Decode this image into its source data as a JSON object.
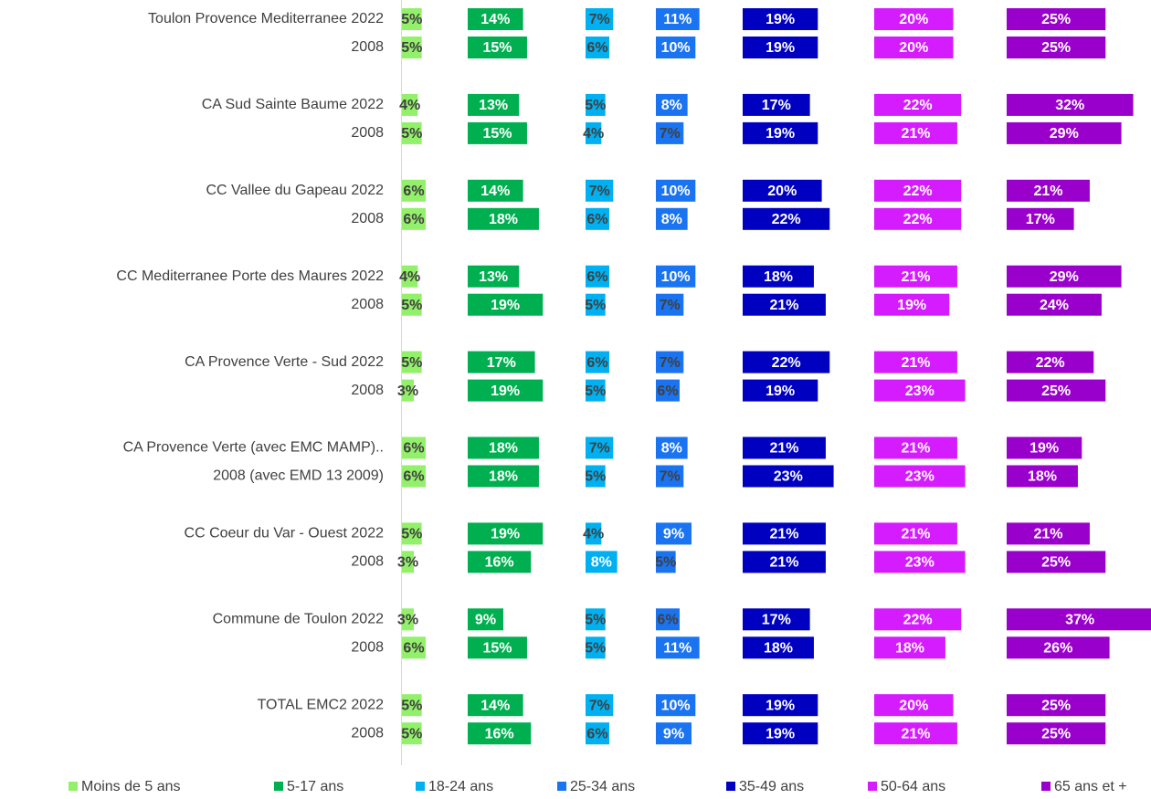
{
  "chart_data": {
    "type": "bar",
    "categories": [
      "Toulon Provence Mediterranee 2022",
      "2008",
      "CA Sud Sainte Baume 2022",
      "2008",
      "CC Vallee du Gapeau 2022",
      "2008",
      "CC Mediterranee Porte des Maures 2022",
      "2008",
      "CA Provence Verte - Sud 2022",
      "2008",
      "CA Provence Verte (avec EMC MAMP)..",
      "2008 (avec EMD 13 2009)",
      "CC Coeur du Var - Ouest 2022",
      "2008",
      "Commune de Toulon 2022",
      "2008",
      "TOTAL EMC2 2022",
      "2008"
    ],
    "series": [
      {
        "name": "Moins de 5 ans",
        "color": "#92f06a",
        "values": [
          5,
          5,
          4,
          5,
          6,
          6,
          4,
          5,
          5,
          3,
          6,
          6,
          5,
          3,
          3,
          6,
          5,
          5
        ],
        "value_labels": [
          "5%",
          "5%",
          "4%",
          "5%",
          "6%",
          "6%",
          "4%",
          "5%",
          "5%",
          "3%",
          "6%",
          "6%",
          "5%",
          "3%",
          "3%",
          "6%",
          "5%",
          "5%"
        ]
      },
      {
        "name": "5-17 ans",
        "color": "#00b050",
        "values": [
          14,
          15,
          13,
          15,
          14,
          18,
          13,
          19,
          17,
          19,
          18,
          18,
          19,
          16,
          9,
          15,
          14,
          16
        ],
        "value_labels": [
          "14%",
          "15%",
          "13%",
          "15%",
          "14%",
          "18%",
          "13%",
          "19%",
          "17%",
          "19%",
          "18%",
          "18%",
          "19%",
          "16%",
          "9%",
          "15%",
          "14%",
          "16%"
        ]
      },
      {
        "name": "18-24 ans",
        "color": "#00b0f0",
        "values": [
          7,
          6,
          5,
          4,
          7,
          6,
          6,
          5,
          6,
          5,
          7,
          5,
          4,
          8,
          5,
          5,
          7,
          6
        ],
        "value_labels": [
          "7%",
          "6%",
          "5%",
          "4%",
          "7%",
          "6%",
          "6%",
          "5%",
          "6%",
          "5%",
          "7%",
          "5%",
          "4%",
          "8%",
          "5%",
          "5%",
          "7%",
          "6%"
        ]
      },
      {
        "name": "25-34 ans",
        "color": "#1a73f0",
        "values": [
          11,
          10,
          8,
          7,
          10,
          8,
          10,
          7,
          7,
          6,
          8,
          7,
          9,
          5,
          6,
          11,
          10,
          9
        ],
        "value_labels": [
          "11%",
          "10%",
          "8%",
          "7%",
          "10%",
          "8%",
          "10%",
          "7%",
          "7%",
          "6%",
          "8%",
          "7%",
          "9%",
          "5%",
          "6%",
          "11%",
          "10%",
          "9%"
        ]
      },
      {
        "name": "35-49 ans",
        "color": "#0000c0",
        "values": [
          19,
          19,
          17,
          19,
          20,
          22,
          18,
          21,
          22,
          19,
          21,
          23,
          21,
          21,
          17,
          18,
          19,
          19
        ],
        "value_labels": [
          "19%",
          "19%",
          "17%",
          "19%",
          "20%",
          "22%",
          "18%",
          "21%",
          "22%",
          "19%",
          "21%",
          "23%",
          "21%",
          "21%",
          "17%",
          "18%",
          "19%",
          "19%"
        ]
      },
      {
        "name": "50-64 ans",
        "color": "#d41cff",
        "values": [
          20,
          20,
          22,
          21,
          22,
          22,
          21,
          19,
          21,
          23,
          21,
          23,
          21,
          23,
          22,
          18,
          20,
          21
        ],
        "value_labels": [
          "20%",
          "20%",
          "22%",
          "21%",
          "22%",
          "22%",
          "21%",
          "19%",
          "21%",
          "23%",
          "21%",
          "23%",
          "21%",
          "23%",
          "22%",
          "18%",
          "20%",
          "21%"
        ]
      },
      {
        "name": "65 ans et +",
        "color": "#9a00cc",
        "values": [
          25,
          25,
          32,
          29,
          21,
          17,
          29,
          24,
          22,
          25,
          19,
          18,
          21,
          25,
          37,
          26,
          25,
          25
        ],
        "value_labels": [
          "25%",
          "25%",
          "32%",
          "29%",
          "21%",
          "17%",
          "29%",
          "24%",
          "22%",
          "25%",
          "19%",
          "18%",
          "21%",
          "25%",
          "37%",
          "26%",
          "25%",
          "25%"
        ]
      }
    ]
  }
}
